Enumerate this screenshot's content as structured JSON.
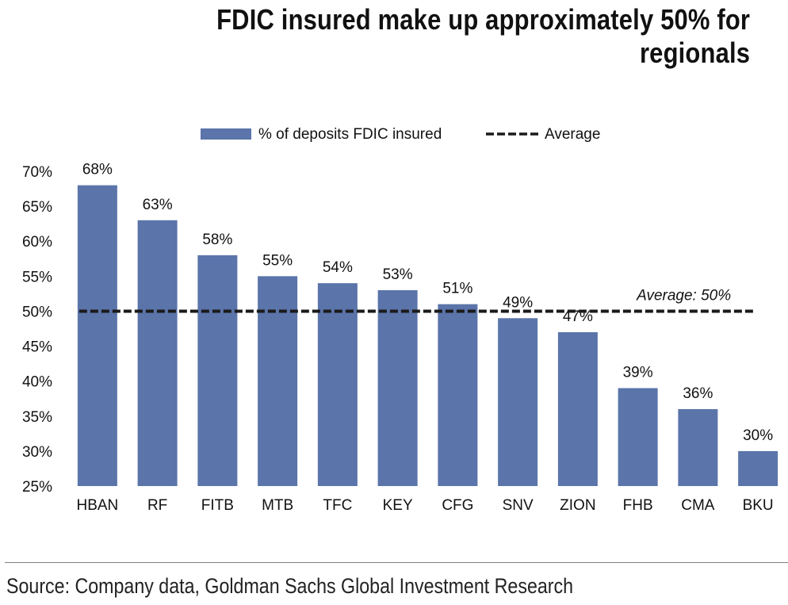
{
  "chart_data": {
    "type": "bar",
    "title": "FDIC insured make up approximately 50% for regionals",
    "categories": [
      "HBAN",
      "RF",
      "FITB",
      "MTB",
      "TFC",
      "KEY",
      "CFG",
      "SNV",
      "ZION",
      "FHB",
      "CMA",
      "BKU"
    ],
    "series": [
      {
        "name": "% of deposits FDIC insured",
        "values": [
          68,
          63,
          58,
          55,
          54,
          53,
          51,
          49,
          47,
          39,
          36,
          30
        ],
        "labels": [
          "68%",
          "63%",
          "58%",
          "55%",
          "54%",
          "53%",
          "51%",
          "49%",
          "47%",
          "39%",
          "36%",
          "30%"
        ],
        "color": "#5b74aa"
      }
    ],
    "average": {
      "legend_label": "Average",
      "value": 50,
      "annotation": "Average: 50%",
      "color": "#1a1a1a"
    },
    "ylim": [
      25,
      70
    ],
    "yticks": [
      25,
      30,
      35,
      40,
      45,
      50,
      55,
      60,
      65,
      70
    ],
    "ytick_labels": [
      "25%",
      "30%",
      "35%",
      "40%",
      "45%",
      "50%",
      "55%",
      "60%",
      "65%",
      "70%"
    ],
    "xlabel": "",
    "ylabel": "",
    "grid": false,
    "legend_position": "top-center"
  },
  "source": "Source: Company data, Goldman Sachs Global Investment Research"
}
